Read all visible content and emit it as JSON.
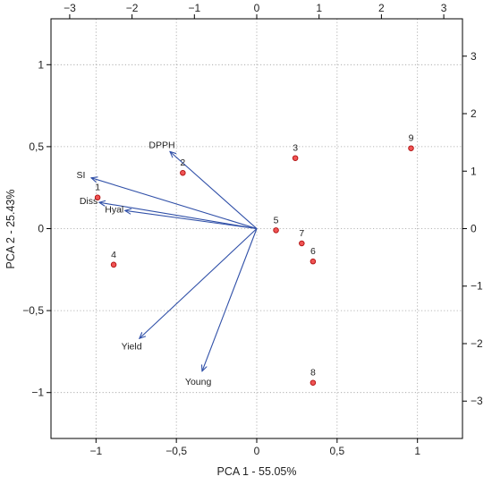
{
  "chart_data": {
    "type": "scatter",
    "title": "",
    "xlabel": "PCA 1 - 55.05%",
    "ylabel": "PCA 2 - 25.43%",
    "xlim": [
      -1.28,
      1.28
    ],
    "ylim": [
      -1.28,
      1.28
    ],
    "xticks": [
      -1,
      -0.5,
      0,
      0.5,
      1
    ],
    "xtick_labels": [
      "−1",
      "−0,5",
      "0",
      "0,5",
      "1"
    ],
    "yticks": [
      -1,
      -0.5,
      0,
      0.5,
      1
    ],
    "ytick_labels": [
      "−1",
      "−0,5",
      "0",
      "0,5",
      "1"
    ],
    "top_axis": {
      "lim": [
        -3.3,
        3.3
      ],
      "ticks": [
        -3,
        -2,
        -1,
        0,
        1,
        2,
        3
      ],
      "tick_labels": [
        "−3",
        "−2",
        "−1",
        "0",
        "1",
        "2",
        "3"
      ]
    },
    "right_axis": {
      "lim": [
        -3.65,
        3.65
      ],
      "ticks": [
        -3,
        -2,
        -1,
        0,
        1,
        2,
        3
      ],
      "tick_labels": [
        "−3",
        "−2",
        "−1",
        "0",
        "1",
        "2",
        "3"
      ]
    },
    "grid": true,
    "points": [
      {
        "label": "1",
        "x": -0.99,
        "y": 0.19
      },
      {
        "label": "2",
        "x": -0.46,
        "y": 0.34
      },
      {
        "label": "3",
        "x": 0.24,
        "y": 0.43
      },
      {
        "label": "4",
        "x": -0.89,
        "y": -0.22
      },
      {
        "label": "5",
        "x": 0.12,
        "y": -0.01
      },
      {
        "label": "6",
        "x": 0.35,
        "y": -0.2
      },
      {
        "label": "7",
        "x": 0.28,
        "y": -0.09
      },
      {
        "label": "8",
        "x": 0.35,
        "y": -0.94
      },
      {
        "label": "9",
        "x": 0.96,
        "y": 0.49
      }
    ],
    "loadings": [
      {
        "label": "DPPH",
        "x": -0.54,
        "y": 0.47
      },
      {
        "label": "SI",
        "x": -1.03,
        "y": 0.31
      },
      {
        "label": "Diss",
        "x": -0.98,
        "y": 0.16
      },
      {
        "label": "Hyal",
        "x": -0.82,
        "y": 0.11
      },
      {
        "label": "Yield",
        "x": -0.73,
        "y": -0.67
      },
      {
        "label": "Young",
        "x": -0.34,
        "y": -0.87
      }
    ],
    "colors": {
      "point_fill": "#f05454",
      "point_stroke": "#b01010",
      "arrow": "#3050a8",
      "grid": "#a0a0a0",
      "frame": "#000000"
    }
  }
}
